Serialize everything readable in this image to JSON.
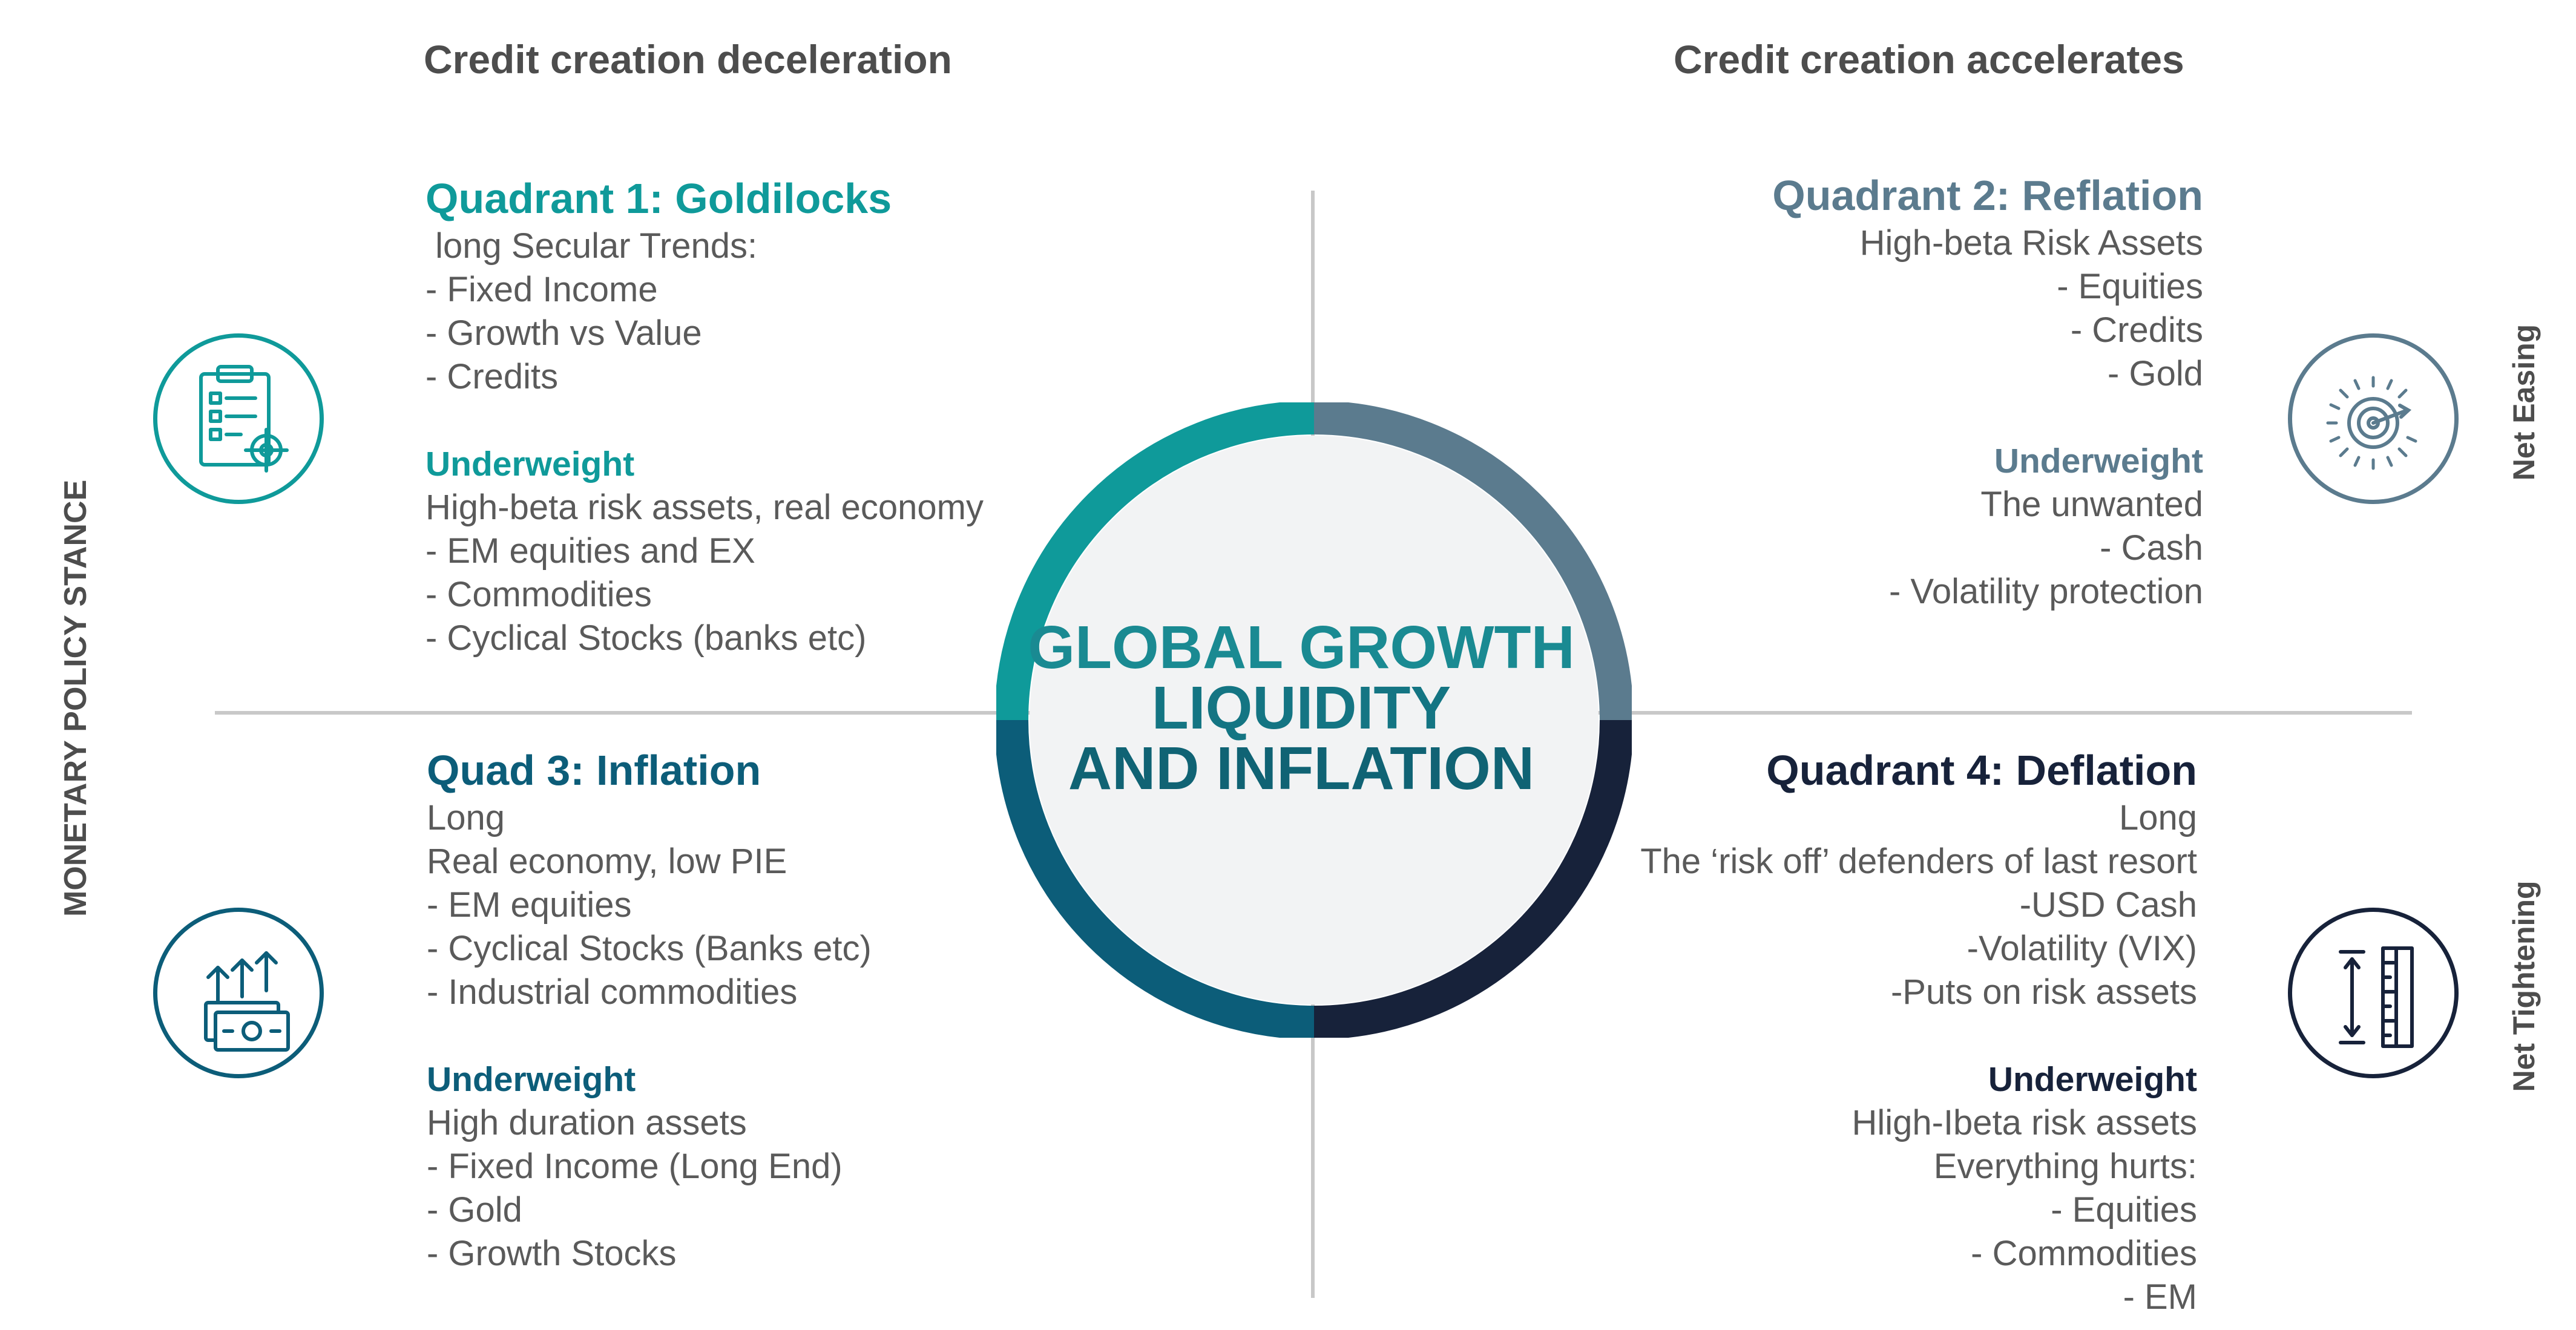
{
  "headers": {
    "left": "Credit creation deceleration",
    "right": "Credit creation accelerates"
  },
  "axis_labels": {
    "vertical_left": "MONETARY POLICY STANCE",
    "right_top": "Net Easing",
    "right_bottom": "Net Tightening"
  },
  "center": {
    "line1": "GLOBAL GROWTH",
    "line2": "LIQUIDITY",
    "line3": "AND INFLATION"
  },
  "colors": {
    "q1": "#0f9a9a",
    "q2": "#5b7b8e",
    "q3": "#0c5d79",
    "q4": "#17223a",
    "text": "#5a5a5a",
    "axis": "#c8c8c8"
  },
  "quadrants": {
    "q1": {
      "title": "Quadrant 1: Goldilocks",
      "long_items": [
        " long Secular Trends:",
        "- Fixed Income",
        "- Growth vs Value",
        "- Credits"
      ],
      "underweight_label": "Underweight",
      "underweight_items": [
        "High-beta risk assets, real economy",
        "- EM equities and EX",
        "- Commodities",
        "- Cyclical Stocks (banks etc)"
      ],
      "icon": "clipboard-target-icon"
    },
    "q2": {
      "title": "Quadrant 2: Reflation",
      "long_items": [
        "High-beta Risk Assets",
        "- Equities",
        "- Credits",
        "- Gold"
      ],
      "underweight_label": "Underweight",
      "underweight_items": [
        "The unwanted",
        "- Cash",
        "- Volatility protection"
      ],
      "icon": "target-burst-icon"
    },
    "q3": {
      "title": "Quad 3: Inflation",
      "long_items": [
        "Long",
        "Real economy, low PIE",
        "- EM equities",
        "- Cyclical Stocks (Banks etc)",
        "- Industrial commodities"
      ],
      "underweight_label": "Underweight",
      "underweight_items": [
        "High duration assets",
        "- Fixed Income (Long End)",
        "- Gold",
        "- Growth Stocks"
      ],
      "icon": "money-arrows-up-icon"
    },
    "q4": {
      "title": "Quadrant 4: Deflation",
      "long_items": [
        "Long",
        "The ‘risk off’ defenders of last resort",
        "-USD Cash",
        "-Volatility (VIX)",
        "-Puts on risk assets"
      ],
      "underweight_label": "Underweight",
      "underweight_items": [
        "Hligh-Ibeta risk assets",
        "Everything hurts:",
        "- Equities",
        "- Commodities",
        "- EM"
      ],
      "icon": "ruler-measure-icon"
    }
  }
}
